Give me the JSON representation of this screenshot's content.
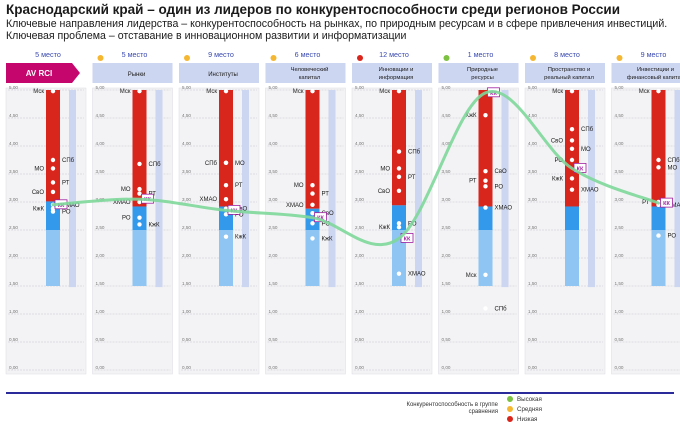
{
  "title": "Краснодарский край – один из лидеров по конкурентоспособности среди регионов России",
  "subtitle": "Ключевые направления лидерства – конкурентоспособность на рынках, по природным ресурсам и в сфере привлечения инвестиций. Ключевая проблема – отставание в инновационном развитии и информатизации",
  "legend": {
    "caption": "Конкурентоспособность в группе сравнения",
    "items": [
      {
        "label": "Высокая",
        "color": "#7cc142"
      },
      {
        "label": "Средняя",
        "color": "#f5b731"
      },
      {
        "label": "Низкая",
        "color": "#d9251c"
      }
    ]
  },
  "chart_data": {
    "type": "scatter",
    "ylim": [
      0,
      5
    ],
    "yticks": [
      "5,00",
      "4,50",
      "4,00",
      "3,50",
      "3,00",
      "2,50",
      "2,00",
      "1,50",
      "1,00",
      "0,50",
      "0,00"
    ],
    "highlight": "КК",
    "colors": {
      "high": "#d9261c",
      "mid": "#3399ea",
      "low": "#8ec5f2",
      "line": "#7ed79a",
      "header": "#c5076d",
      "rank": "#3a4ab0",
      "card": "#cdd6f0",
      "extra_bar": "#cdd6f0"
    },
    "columns": [
      {
        "rank": "5 место",
        "label": "AV RCI",
        "status": null,
        "kk": 2.95,
        "band": [
          3.01,
          5.0,
          2.5,
          1.5
        ],
        "points": [
          {
            "label": "Мск",
            "y": 4.98,
            "side": "L"
          },
          {
            "label": "СПб",
            "y": 3.75,
            "side": "R"
          },
          {
            "label": "МО",
            "y": 3.6,
            "side": "L"
          },
          {
            "label": "РТ",
            "y": 3.35,
            "side": "R"
          },
          {
            "label": "СвО",
            "y": 3.18,
            "side": "L"
          },
          {
            "label": "ХМАО",
            "y": 2.95,
            "side": "R"
          },
          {
            "label": "КжК",
            "y": 2.88,
            "side": "L"
          },
          {
            "label": "РО",
            "y": 2.83,
            "side": "R"
          }
        ]
      },
      {
        "rank": "5 место",
        "label": "Рынки",
        "status": "mid",
        "kk": 3.05,
        "band": [
          2.92,
          5.0,
          2.5,
          1.5
        ],
        "points": [
          {
            "label": "Мск",
            "y": 4.98,
            "side": "L"
          },
          {
            "label": "СПб",
            "y": 3.68,
            "side": "R"
          },
          {
            "label": "МО",
            "y": 3.23,
            "side": "L"
          },
          {
            "label": "РТ",
            "y": 3.15,
            "side": "R"
          },
          {
            "label": "ХМАО",
            "y": 3.0,
            "side": "L"
          },
          {
            "label": "РО",
            "y": 2.72,
            "side": "L"
          },
          {
            "label": "КжК",
            "y": 2.6,
            "side": "R"
          }
        ]
      },
      {
        "rank": "9 место",
        "label": "Институты",
        "status": "mid",
        "kk": 2.85,
        "band": [
          2.92,
          5.0,
          2.5,
          1.5
        ],
        "points": [
          {
            "label": "Мск",
            "y": 4.98,
            "side": "L"
          },
          {
            "label": "СПб",
            "y": 3.7,
            "side": "L"
          },
          {
            "label": "МО",
            "y": 3.7,
            "side": "R"
          },
          {
            "label": "РТ",
            "y": 3.3,
            "side": "R"
          },
          {
            "label": "ХМАО",
            "y": 3.05,
            "side": "L"
          },
          {
            "label": "СвО",
            "y": 2.88,
            "side": "R"
          },
          {
            "label": "РО",
            "y": 2.78,
            "side": "R"
          },
          {
            "label": "КжК",
            "y": 2.38,
            "side": "R"
          }
        ]
      },
      {
        "rank": "6 место",
        "label": "Человеческий капитал",
        "status": "mid",
        "kk": 2.72,
        "band": [
          2.88,
          5.0,
          2.5,
          1.5
        ],
        "points": [
          {
            "label": "Мск",
            "y": 4.98,
            "side": "L"
          },
          {
            "label": "МО",
            "y": 3.3,
            "side": "L"
          },
          {
            "label": "РТ",
            "y": 3.15,
            "side": "R"
          },
          {
            "label": "ХМАО",
            "y": 2.95,
            "side": "L"
          },
          {
            "label": "СвО",
            "y": 2.8,
            "side": "R"
          },
          {
            "label": "РО",
            "y": 2.62,
            "side": "R"
          },
          {
            "label": "КжК",
            "y": 2.35,
            "side": "R"
          }
        ]
      },
      {
        "rank": "12 место",
        "label": "Инновации и информация",
        "status": "low",
        "kk": 2.35,
        "band": [
          2.94,
          5.0,
          2.5,
          1.5
        ],
        "points": [
          {
            "label": "Мск",
            "y": 4.98,
            "side": "L"
          },
          {
            "label": "СПб",
            "y": 3.9,
            "side": "R"
          },
          {
            "label": "МО",
            "y": 3.6,
            "side": "L"
          },
          {
            "label": "РТ",
            "y": 3.45,
            "side": "R"
          },
          {
            "label": "СвО",
            "y": 3.2,
            "side": "L"
          },
          {
            "label": "РО",
            "y": 2.62,
            "side": "R"
          },
          {
            "label": "КжК",
            "y": 2.55,
            "side": "L"
          },
          {
            "label": "ХМАО",
            "y": 1.72,
            "side": "R"
          }
        ]
      },
      {
        "rank": "1 место",
        "label": "Природные ресурсы",
        "status": "high",
        "kk": 4.95,
        "band": [
          2.92,
          5.0,
          2.5,
          1.5
        ],
        "points": [
          {
            "label": "КжК",
            "y": 4.55,
            "side": "L"
          },
          {
            "label": "СвО",
            "y": 3.55,
            "side": "R"
          },
          {
            "label": "РТ",
            "y": 3.38,
            "side": "L"
          },
          {
            "label": "РО",
            "y": 3.28,
            "side": "R"
          },
          {
            "label": "ХМАО",
            "y": 2.9,
            "side": "R"
          },
          {
            "label": "Мск",
            "y": 1.7,
            "side": "L"
          },
          {
            "label": "СПб",
            "y": 1.1,
            "side": "R"
          }
        ]
      },
      {
        "rank": "8 место",
        "label": "Пространство и реальный капитал",
        "status": "mid",
        "kk": 3.6,
        "band": [
          2.92,
          5.0,
          2.5,
          1.5
        ],
        "points": [
          {
            "label": "Мск",
            "y": 4.98,
            "side": "L"
          },
          {
            "label": "СПб",
            "y": 4.3,
            "side": "R"
          },
          {
            "label": "СвО",
            "y": 4.1,
            "side": "L"
          },
          {
            "label": "МО",
            "y": 3.95,
            "side": "R"
          },
          {
            "label": "РО",
            "y": 3.75,
            "side": "L"
          },
          {
            "label": "КжК",
            "y": 3.42,
            "side": "L"
          },
          {
            "label": "ХМАО",
            "y": 3.22,
            "side": "R"
          }
        ]
      },
      {
        "rank": "9 место",
        "label": "Инвестиции и финансовый капитал",
        "status": "mid",
        "kk": 2.98,
        "band": [
          2.92,
          5.0,
          2.5,
          1.5
        ],
        "points": [
          {
            "label": "Мск",
            "y": 4.98,
            "side": "L"
          },
          {
            "label": "СПб",
            "y": 3.75,
            "side": "R"
          },
          {
            "label": "МО",
            "y": 3.62,
            "side": "R"
          },
          {
            "label": "РТ",
            "y": 3.0,
            "side": "L"
          },
          {
            "label": "ХМАО",
            "y": 2.95,
            "side": "R"
          },
          {
            "label": "РО",
            "y": 2.4,
            "side": "R"
          }
        ]
      }
    ]
  }
}
